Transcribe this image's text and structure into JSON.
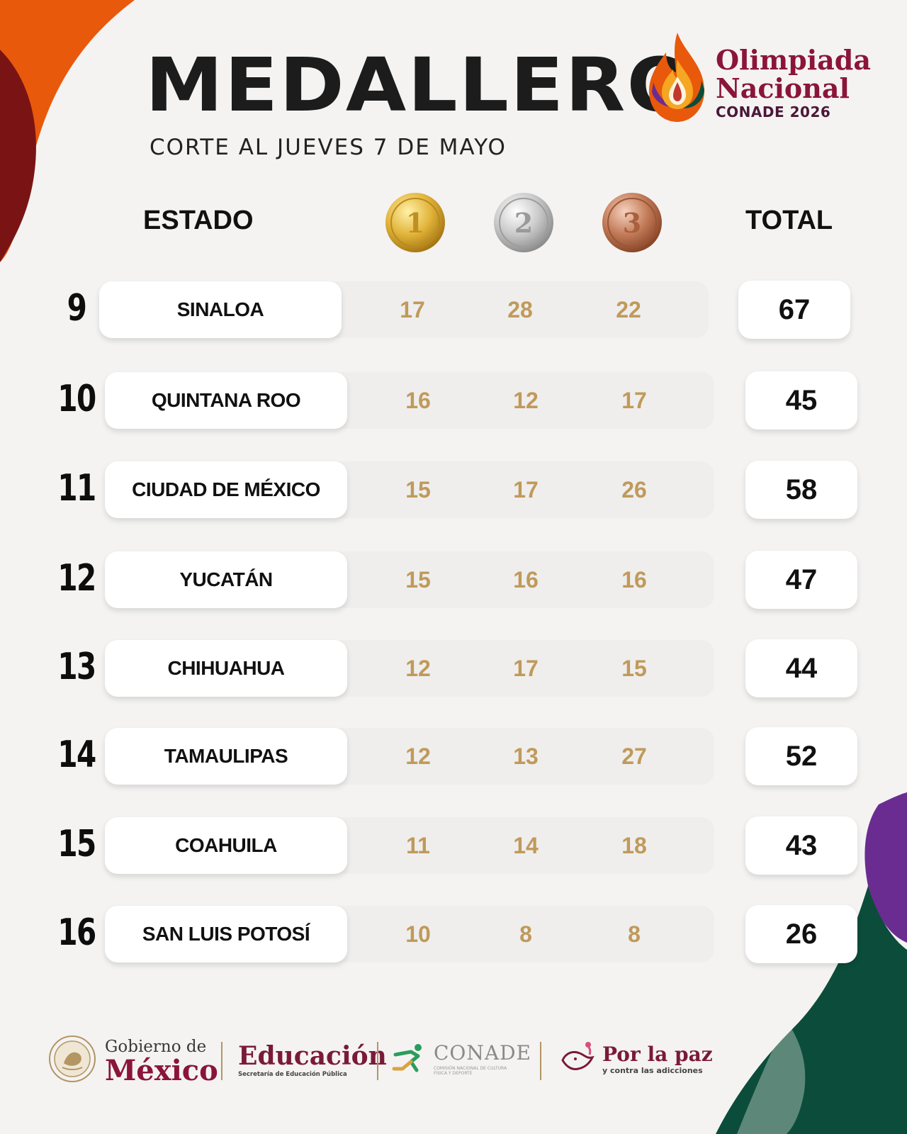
{
  "header": {
    "title": "MEDALLERO",
    "subtitle": "CORTE AL JUEVES 7 DE MAYO"
  },
  "logo": {
    "line1": "Olimpiada",
    "line2": "Nacional",
    "line3": "CONADE 2026"
  },
  "columns": {
    "state": "ESTADO",
    "total": "TOTAL",
    "medals": [
      "1",
      "2",
      "3"
    ]
  },
  "rows": [
    {
      "rank": "9",
      "state": "SINALOA",
      "gold": "17",
      "silver": "28",
      "bronze": "22",
      "total": "67"
    },
    {
      "rank": "10",
      "state": "QUINTANA ROO",
      "gold": "16",
      "silver": "12",
      "bronze": "17",
      "total": "45"
    },
    {
      "rank": "11",
      "state": "CIUDAD DE MÉXICO",
      "gold": "15",
      "silver": "17",
      "bronze": "26",
      "total": "58"
    },
    {
      "rank": "12",
      "state": "YUCATÁN",
      "gold": "15",
      "silver": "16",
      "bronze": "16",
      "total": "47"
    },
    {
      "rank": "13",
      "state": "CHIHUAHUA",
      "gold": "12",
      "silver": "17",
      "bronze": "15",
      "total": "44"
    },
    {
      "rank": "14",
      "state": "TAMAULIPAS",
      "gold": "12",
      "silver": "13",
      "bronze": "27",
      "total": "52"
    },
    {
      "rank": "15",
      "state": "COAHUILA",
      "gold": "11",
      "silver": "14",
      "bronze": "18",
      "total": "43"
    },
    {
      "rank": "16",
      "state": "SAN LUIS POTOSÍ",
      "gold": "10",
      "silver": "8",
      "bronze": "8",
      "total": "26"
    }
  ],
  "footer": {
    "gobierno_line1": "Gobierno de",
    "gobierno_line2": "México",
    "educacion_title": "Educación",
    "educacion_sub": "Secretaría de Educación Pública",
    "conade_title": "CONADE",
    "conade_sub": "COMISIÓN NACIONAL DE CULTURA FÍSICA Y DEPORTE",
    "paz_title": "Por la paz",
    "paz_sub": "y contra las adicciones"
  },
  "colors": {
    "medal_number": "#c09a5b",
    "brand_wine": "#8a1538",
    "deco_orange": "#e8590c",
    "deco_darkred": "#7a1414",
    "deco_purple": "#6a2c91",
    "deco_green": "#0b4d3a"
  }
}
